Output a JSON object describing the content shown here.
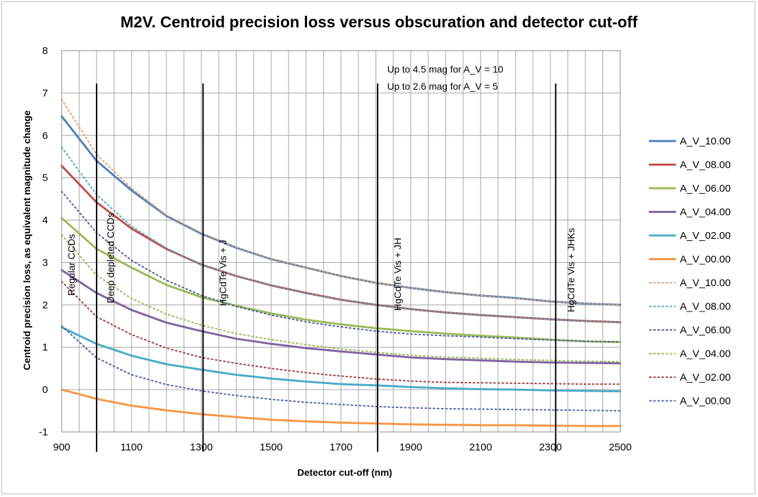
{
  "chart_data": {
    "type": "line",
    "title": "M2V. Centroid precision loss versus obscuration and detector cut-off",
    "xlabel": "Detector cut-off (nm)",
    "ylabel": "Centroid precision loss, as equivalent magnitude change",
    "xlim": [
      900,
      2500
    ],
    "ylim": [
      -1,
      8
    ],
    "xticks": [
      900,
      1100,
      1300,
      1500,
      1700,
      1900,
      2100,
      2300,
      2500
    ],
    "yticks": [
      -1,
      0,
      1,
      2,
      3,
      4,
      5,
      6,
      7,
      8
    ],
    "grid": true,
    "legend_position": "right",
    "x": [
      900,
      1000,
      1100,
      1200,
      1300,
      1400,
      1500,
      1600,
      1700,
      1800,
      1900,
      2000,
      2100,
      2200,
      2300,
      2400,
      2500
    ],
    "series": [
      {
        "name": "A_V_10.00",
        "style": "solid",
        "color": "#4f81bd",
        "values": [
          6.45,
          5.4,
          4.7,
          4.1,
          3.68,
          3.35,
          3.08,
          2.88,
          2.68,
          2.52,
          2.4,
          2.3,
          2.22,
          2.16,
          2.08,
          2.03,
          2.0
        ]
      },
      {
        "name": "A_V_08.00",
        "style": "solid",
        "color": "#c0504d",
        "values": [
          5.28,
          4.42,
          3.8,
          3.32,
          2.95,
          2.68,
          2.46,
          2.28,
          2.12,
          2.0,
          1.9,
          1.82,
          1.76,
          1.71,
          1.66,
          1.62,
          1.59
        ]
      },
      {
        "name": "A_V_06.00",
        "style": "solid",
        "color": "#9bbb59",
        "values": [
          4.05,
          3.32,
          2.88,
          2.47,
          2.18,
          1.98,
          1.8,
          1.65,
          1.54,
          1.45,
          1.38,
          1.32,
          1.27,
          1.23,
          1.18,
          1.14,
          1.12
        ]
      },
      {
        "name": "A_V_04.00",
        "style": "solid",
        "color": "#8064a2",
        "values": [
          2.82,
          2.28,
          1.88,
          1.58,
          1.38,
          1.2,
          1.08,
          0.98,
          0.9,
          0.83,
          0.76,
          0.72,
          0.69,
          0.66,
          0.64,
          0.63,
          0.62
        ]
      },
      {
        "name": "A_V_02.00",
        "style": "solid",
        "color": "#4bacc6",
        "values": [
          1.47,
          1.08,
          0.8,
          0.6,
          0.47,
          0.35,
          0.26,
          0.19,
          0.13,
          0.1,
          0.06,
          0.03,
          0.01,
          0.0,
          -0.02,
          -0.03,
          -0.04
        ]
      },
      {
        "name": "A_V_00.00",
        "style": "solid",
        "color": "#f79646",
        "values": [
          0.0,
          -0.22,
          -0.38,
          -0.49,
          -0.58,
          -0.65,
          -0.71,
          -0.75,
          -0.78,
          -0.8,
          -0.82,
          -0.83,
          -0.84,
          -0.84,
          -0.85,
          -0.86,
          -0.86
        ]
      },
      {
        "name": "A_V_10.00",
        "style": "dotted",
        "color": "#e0a070",
        "values": [
          6.85,
          5.55,
          4.75,
          4.12,
          3.7,
          3.36,
          3.09,
          2.88,
          2.68,
          2.52,
          2.4,
          2.3,
          2.22,
          2.15,
          2.08,
          2.03,
          2.0
        ]
      },
      {
        "name": "A_V_08.00",
        "style": "dotted",
        "color": "#4bacc6",
        "values": [
          5.72,
          4.6,
          3.85,
          3.34,
          2.95,
          2.68,
          2.46,
          2.27,
          2.12,
          2.0,
          1.9,
          1.82,
          1.76,
          1.71,
          1.66,
          1.62,
          1.59
        ]
      },
      {
        "name": "A_V_06.00",
        "style": "dotted",
        "color": "#4f5fa0",
        "values": [
          4.68,
          3.7,
          3.05,
          2.58,
          2.22,
          1.96,
          1.76,
          1.6,
          1.48,
          1.38,
          1.31,
          1.27,
          1.24,
          1.2,
          1.17,
          1.14,
          1.13
        ]
      },
      {
        "name": "A_V_04.00",
        "style": "dotted",
        "color": "#9bbb59",
        "values": [
          3.65,
          2.7,
          2.15,
          1.78,
          1.52,
          1.32,
          1.18,
          1.06,
          0.96,
          0.88,
          0.81,
          0.77,
          0.74,
          0.71,
          0.69,
          0.67,
          0.66
        ]
      },
      {
        "name": "A_V_02.00",
        "style": "dotted",
        "color": "#a0413e",
        "values": [
          2.55,
          1.72,
          1.3,
          0.98,
          0.76,
          0.62,
          0.5,
          0.4,
          0.32,
          0.25,
          0.2,
          0.17,
          0.16,
          0.15,
          0.14,
          0.13,
          0.13
        ]
      },
      {
        "name": "A_V_00.00",
        "style": "dotted",
        "color": "#4a66ac",
        "values": [
          1.5,
          0.75,
          0.35,
          0.12,
          -0.03,
          -0.14,
          -0.23,
          -0.3,
          -0.35,
          -0.4,
          -0.43,
          -0.45,
          -0.46,
          -0.47,
          -0.48,
          -0.49,
          -0.5
        ]
      }
    ],
    "cutoff_lines": [
      {
        "x": 1000,
        "label": "Deep depleted CCDs"
      },
      {
        "x": 1305,
        "label": "HgCdTe Vis + J"
      },
      {
        "x": 1805,
        "label": "HgCdTe Vis + JH"
      },
      {
        "x": 2315,
        "label": "HgCdTe Vis + JHKs"
      }
    ],
    "extra_label": "Regular CCDs",
    "annotations": [
      "Up to 4.5 mag for A_V = 10",
      "Up to 2.6 mag for A_V = 5"
    ]
  }
}
